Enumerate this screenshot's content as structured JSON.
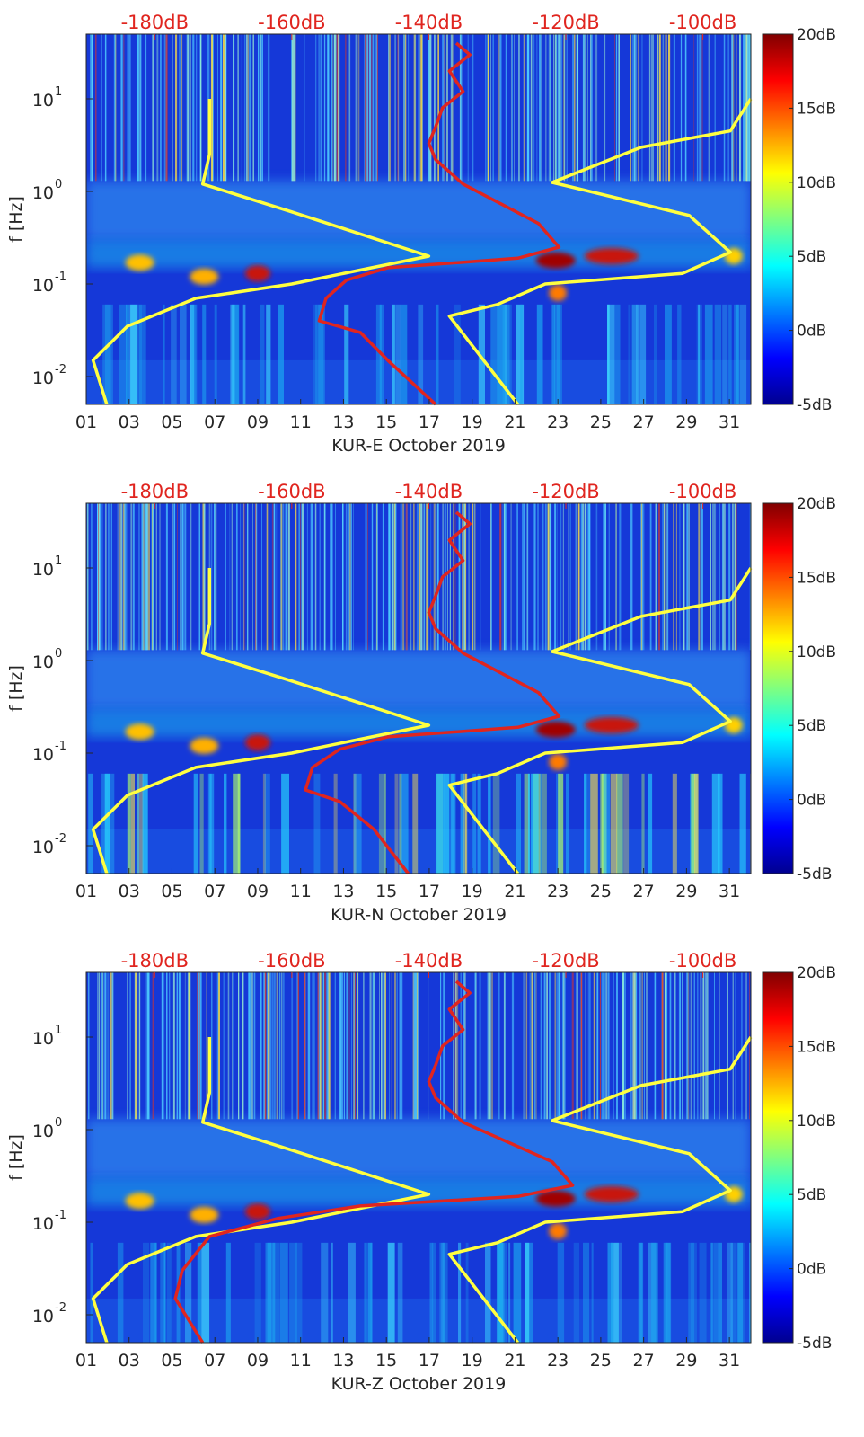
{
  "chart_data": [
    {
      "type": "heatmap",
      "xlabel": "KUR-E October 2019",
      "ylabel": "f [Hz]",
      "x_ticks": [
        "01",
        "03",
        "05",
        "07",
        "09",
        "11",
        "13",
        "15",
        "17",
        "19",
        "21",
        "23",
        "25",
        "27",
        "29",
        "31"
      ],
      "xlim": [
        1,
        32
      ],
      "y_scale": "log",
      "ylim": [
        0.005,
        50
      ],
      "y_ticks": [
        {
          "label": "10",
          "exp": "-2"
        },
        {
          "label": "10",
          "exp": "-1"
        },
        {
          "label": "10",
          "exp": "0"
        },
        {
          "label": "10",
          "exp": "1"
        }
      ],
      "top_axis_ticks": [
        "-180dB",
        "-160dB",
        "-140dB",
        "-120dB",
        "-100dB"
      ],
      "top_axis_range_db": [
        -190,
        -93
      ],
      "colorbar": {
        "ticks": [
          "20dB",
          "15dB",
          "10dB",
          "5dB",
          "0dB",
          "-5dB"
        ],
        "range": [
          -5,
          20
        ]
      },
      "series": [
        {
          "color": "#ffff40",
          "x_units": "dB_top_axis",
          "points": [
            [
              -172,
              10
            ],
            [
              -172,
              2.5
            ],
            [
              -173,
              1.2
            ],
            [
              -160,
              0.6
            ],
            [
              -140,
              0.2
            ],
            [
              -160,
              0.1
            ],
            [
              -174,
              0.07
            ],
            [
              -184,
              0.035
            ],
            [
              -189,
              0.015
            ],
            [
              -187,
              0.005
            ]
          ]
        },
        {
          "color": "#ffff40",
          "x_units": "dB_top_axis",
          "points": [
            [
              -93,
              10
            ],
            [
              -96,
              4.5
            ],
            [
              -109,
              3
            ],
            [
              -122,
              1.25
            ],
            [
              -102,
              0.55
            ],
            [
              -96,
              0.22
            ],
            [
              -103,
              0.13
            ],
            [
              -123,
              0.1
            ],
            [
              -130,
              0.06
            ],
            [
              -137,
              0.045
            ],
            [
              -127,
              0.005
            ]
          ]
        },
        {
          "color": "#e0251f",
          "x_units": "dB_top_axis",
          "points": [
            [
              -136,
              40
            ],
            [
              -134,
              30
            ],
            [
              -137,
              20
            ],
            [
              -135,
              12
            ],
            [
              -138,
              8
            ],
            [
              -139,
              5
            ],
            [
              -140,
              3.3
            ],
            [
              -139,
              2.2
            ],
            [
              -135,
              1.2
            ],
            [
              -124,
              0.45
            ],
            [
              -121,
              0.25
            ],
            [
              -127,
              0.19
            ],
            [
              -146,
              0.15
            ],
            [
              -152,
              0.11
            ],
            [
              -155,
              0.07
            ],
            [
              -156,
              0.04
            ],
            [
              -150,
              0.03
            ],
            [
              -146,
              0.015
            ],
            [
              -139,
              0.005
            ]
          ]
        }
      ]
    },
    {
      "type": "heatmap",
      "xlabel": "KUR-N October 2019",
      "ylabel": "f [Hz]",
      "x_ticks": [
        "01",
        "03",
        "05",
        "07",
        "09",
        "11",
        "13",
        "15",
        "17",
        "19",
        "21",
        "23",
        "25",
        "27",
        "29",
        "31"
      ],
      "xlim": [
        1,
        32
      ],
      "y_scale": "log",
      "ylim": [
        0.005,
        50
      ],
      "y_ticks": [
        {
          "label": "10",
          "exp": "-2"
        },
        {
          "label": "10",
          "exp": "-1"
        },
        {
          "label": "10",
          "exp": "0"
        },
        {
          "label": "10",
          "exp": "1"
        }
      ],
      "top_axis_ticks": [
        "-180dB",
        "-160dB",
        "-140dB",
        "-120dB",
        "-100dB"
      ],
      "top_axis_range_db": [
        -190,
        -93
      ],
      "colorbar": {
        "ticks": [
          "20dB",
          "15dB",
          "10dB",
          "5dB",
          "0dB",
          "-5dB"
        ],
        "range": [
          -5,
          20
        ]
      },
      "series": [
        {
          "color": "#ffff40",
          "x_units": "dB_top_axis",
          "points": [
            [
              -172,
              10
            ],
            [
              -172,
              2.5
            ],
            [
              -173,
              1.2
            ],
            [
              -160,
              0.6
            ],
            [
              -140,
              0.2
            ],
            [
              -160,
              0.1
            ],
            [
              -174,
              0.07
            ],
            [
              -184,
              0.035
            ],
            [
              -189,
              0.015
            ],
            [
              -187,
              0.005
            ]
          ]
        },
        {
          "color": "#ffff40",
          "x_units": "dB_top_axis",
          "points": [
            [
              -93,
              10
            ],
            [
              -96,
              4.5
            ],
            [
              -109,
              3
            ],
            [
              -122,
              1.25
            ],
            [
              -102,
              0.55
            ],
            [
              -96,
              0.22
            ],
            [
              -103,
              0.13
            ],
            [
              -123,
              0.1
            ],
            [
              -130,
              0.06
            ],
            [
              -137,
              0.045
            ],
            [
              -127,
              0.005
            ]
          ]
        },
        {
          "color": "#e0251f",
          "x_units": "dB_top_axis",
          "points": [
            [
              -136,
              40
            ],
            [
              -134,
              30
            ],
            [
              -137,
              20
            ],
            [
              -135,
              12
            ],
            [
              -138,
              8
            ],
            [
              -139,
              5
            ],
            [
              -140,
              3.3
            ],
            [
              -139,
              2.2
            ],
            [
              -135,
              1.2
            ],
            [
              -124,
              0.45
            ],
            [
              -121,
              0.25
            ],
            [
              -127,
              0.19
            ],
            [
              -146,
              0.15
            ],
            [
              -153,
              0.11
            ],
            [
              -157,
              0.07
            ],
            [
              -158,
              0.04
            ],
            [
              -153,
              0.03
            ],
            [
              -148,
              0.015
            ],
            [
              -143,
              0.005
            ]
          ]
        }
      ]
    },
    {
      "type": "heatmap",
      "xlabel": "KUR-Z October 2019",
      "ylabel": "f [Hz]",
      "x_ticks": [
        "01",
        "03",
        "05",
        "07",
        "09",
        "11",
        "13",
        "15",
        "17",
        "19",
        "21",
        "23",
        "25",
        "27",
        "29",
        "31"
      ],
      "xlim": [
        1,
        32
      ],
      "y_scale": "log",
      "ylim": [
        0.005,
        50
      ],
      "y_ticks": [
        {
          "label": "10",
          "exp": "-2"
        },
        {
          "label": "10",
          "exp": "-1"
        },
        {
          "label": "10",
          "exp": "0"
        },
        {
          "label": "10",
          "exp": "1"
        }
      ],
      "top_axis_ticks": [
        "-180dB",
        "-160dB",
        "-140dB",
        "-120dB",
        "-100dB"
      ],
      "top_axis_range_db": [
        -190,
        -93
      ],
      "colorbar": {
        "ticks": [
          "20dB",
          "15dB",
          "10dB",
          "5dB",
          "0dB",
          "-5dB"
        ],
        "range": [
          -5,
          20
        ]
      },
      "series": [
        {
          "color": "#ffff40",
          "x_units": "dB_top_axis",
          "points": [
            [
              -172,
              10
            ],
            [
              -172,
              2.5
            ],
            [
              -173,
              1.2
            ],
            [
              -160,
              0.6
            ],
            [
              -140,
              0.2
            ],
            [
              -160,
              0.1
            ],
            [
              -174,
              0.07
            ],
            [
              -184,
              0.035
            ],
            [
              -189,
              0.015
            ],
            [
              -187,
              0.005
            ]
          ]
        },
        {
          "color": "#ffff40",
          "x_units": "dB_top_axis",
          "points": [
            [
              -93,
              10
            ],
            [
              -96,
              4.5
            ],
            [
              -109,
              3
            ],
            [
              -122,
              1.25
            ],
            [
              -102,
              0.55
            ],
            [
              -96,
              0.22
            ],
            [
              -103,
              0.13
            ],
            [
              -123,
              0.1
            ],
            [
              -130,
              0.06
            ],
            [
              -137,
              0.045
            ],
            [
              -127,
              0.005
            ]
          ]
        },
        {
          "color": "#e0251f",
          "x_units": "dB_top_axis",
          "points": [
            [
              -136,
              40
            ],
            [
              -134,
              30
            ],
            [
              -137,
              20
            ],
            [
              -135,
              12
            ],
            [
              -138,
              8
            ],
            [
              -139,
              5
            ],
            [
              -140,
              3.3
            ],
            [
              -139,
              2.2
            ],
            [
              -135,
              1.2
            ],
            [
              -122,
              0.45
            ],
            [
              -119,
              0.25
            ],
            [
              -127,
              0.19
            ],
            [
              -150,
              0.15
            ],
            [
              -162,
              0.11
            ],
            [
              -172,
              0.07
            ],
            [
              -176,
              0.03
            ],
            [
              -177,
              0.015
            ],
            [
              -173,
              0.005
            ]
          ]
        }
      ]
    }
  ]
}
